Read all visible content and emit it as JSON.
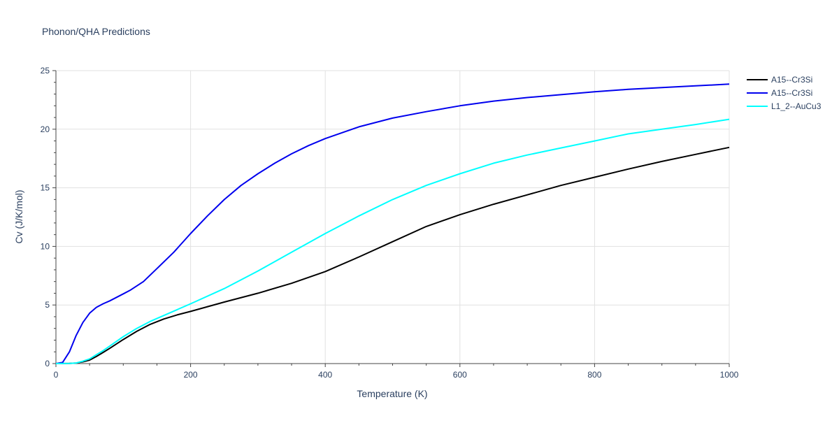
{
  "chart_data": {
    "type": "line",
    "title": "Phonon/QHA Predictions",
    "xlabel": "Temperature (K)",
    "ylabel": "Cv (J/K/mol)",
    "xlim": [
      0,
      1000
    ],
    "ylim": [
      0,
      25
    ],
    "x_ticks": [
      0,
      200,
      400,
      600,
      800,
      1000
    ],
    "y_ticks": [
      0,
      5,
      10,
      15,
      20,
      25
    ],
    "grid": true,
    "legend_position": "top-right",
    "series": [
      {
        "name": "A15--Cr3Si",
        "color": "#000000",
        "x": [
          0,
          20,
          30,
          40,
          50,
          60,
          70,
          80,
          100,
          120,
          140,
          160,
          180,
          200,
          250,
          300,
          350,
          400,
          450,
          500,
          550,
          600,
          650,
          700,
          750,
          800,
          850,
          900,
          950,
          1000
        ],
        "y": [
          0,
          0.02,
          0.05,
          0.15,
          0.3,
          0.6,
          0.95,
          1.3,
          2.05,
          2.75,
          3.35,
          3.8,
          4.15,
          4.45,
          5.25,
          6.0,
          6.85,
          7.85,
          9.1,
          10.4,
          11.7,
          12.7,
          13.6,
          14.4,
          15.2,
          15.9,
          16.6,
          17.25,
          17.85,
          18.45
        ]
      },
      {
        "name": "A15--Cr3Si",
        "color": "#0000ee",
        "x": [
          0,
          10,
          20,
          30,
          40,
          50,
          60,
          70,
          80,
          100,
          110,
          130,
          150,
          175,
          200,
          225,
          250,
          275,
          300,
          325,
          350,
          375,
          400,
          450,
          500,
          550,
          600,
          650,
          700,
          750,
          800,
          850,
          900,
          950,
          1000
        ],
        "y": [
          0,
          0.1,
          1.0,
          2.4,
          3.5,
          4.3,
          4.8,
          5.1,
          5.35,
          5.95,
          6.25,
          7.0,
          8.1,
          9.5,
          11.1,
          12.6,
          14.0,
          15.2,
          16.2,
          17.1,
          17.9,
          18.6,
          19.2,
          20.2,
          20.95,
          21.5,
          22.0,
          22.4,
          22.7,
          22.95,
          23.2,
          23.4,
          23.55,
          23.7,
          23.85
        ]
      },
      {
        "name": "L1_2--AuCu3",
        "color": "#00ffff",
        "x": [
          0,
          20,
          30,
          40,
          50,
          60,
          70,
          80,
          100,
          120,
          140,
          160,
          180,
          200,
          250,
          300,
          350,
          400,
          450,
          500,
          550,
          600,
          650,
          700,
          750,
          800,
          850,
          900,
          950,
          1000
        ],
        "y": [
          0,
          0.02,
          0.05,
          0.2,
          0.4,
          0.75,
          1.1,
          1.5,
          2.3,
          3.0,
          3.6,
          4.1,
          4.6,
          5.1,
          6.4,
          7.9,
          9.5,
          11.1,
          12.6,
          14.0,
          15.2,
          16.2,
          17.1,
          17.8,
          18.4,
          19.0,
          19.6,
          20.0,
          20.4,
          20.85
        ]
      }
    ]
  }
}
